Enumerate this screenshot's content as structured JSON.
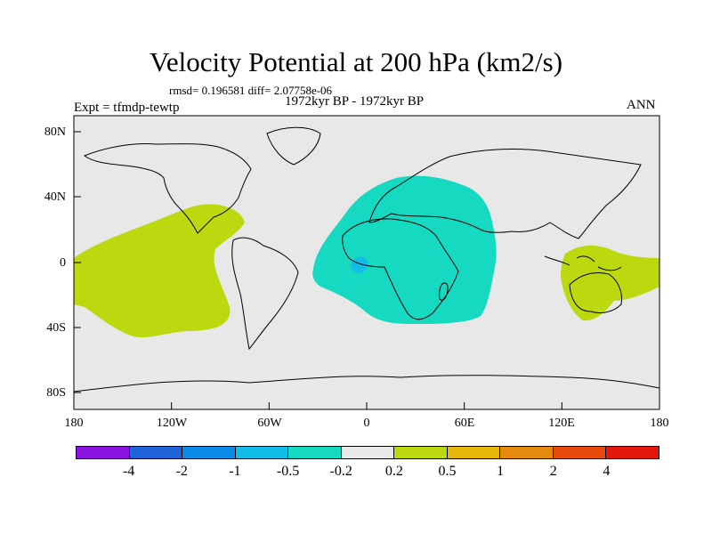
{
  "plot": {
    "title": "Velocity Potential at 200 hPa (km2/s)",
    "stats": "rmsd= 0.196581 diff= 2.07758e-06",
    "period": "1972kyr BP - 1972kyr BP",
    "experiment": "Expt = tfmdp-tewtp",
    "season": "ANN"
  },
  "axes": {
    "lat_labels": [
      "80N",
      "40N",
      "0",
      "40S",
      "80S"
    ],
    "lon_labels": [
      "180",
      "120W",
      "60W",
      "0",
      "60E",
      "120E",
      "180"
    ]
  },
  "colorbar": {
    "colors": [
      "#8b14e0",
      "#1f63d6",
      "#0c8be8",
      "#12bde6",
      "#15d9c0",
      "#e8e8e8",
      "#bcd80e",
      "#e6b70b",
      "#e48a0c",
      "#e54a0a",
      "#e3170c"
    ],
    "labels": [
      "-4",
      "-2",
      "-1",
      "-0.5",
      "-0.2",
      "0.2",
      "0.5",
      "1",
      "2",
      "4"
    ]
  },
  "map_colors": {
    "background": "#e8e8e8",
    "positive": "#bcd80e",
    "negative": "#15d9c0",
    "strong_negative": "#12bde6"
  }
}
